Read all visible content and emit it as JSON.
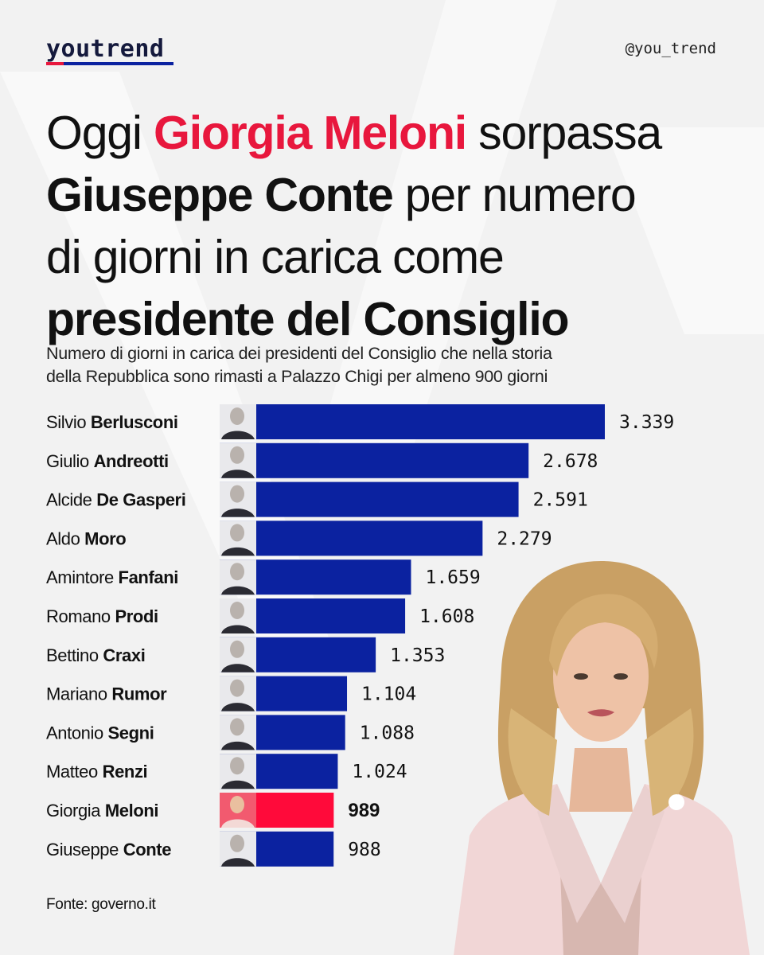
{
  "brand": {
    "logo": "youtrend",
    "handle": "@you_trend",
    "underline_colors": [
      "#e8173d",
      "#0b22a0"
    ]
  },
  "headline": {
    "line1_pre": "Oggi ",
    "line1_red": "Giorgia Meloni",
    "line1_post": " sorpassa",
    "line2_bold": "Giuseppe Conte",
    "line2_post": " per numero",
    "line3": "di giorni in carica come",
    "line4_bold": "presidente del Consiglio"
  },
  "subtitle": {
    "line1": "Numero di giorni in carica dei presidenti del Consiglio che nella storia",
    "line2": "della Repubblica sono rimasti a Palazzo Chigi per almeno 900 giorni"
  },
  "source": "Fonte: governo.it",
  "chart_data": {
    "type": "bar",
    "orientation": "horizontal",
    "categories": [
      {
        "first": "Silvio",
        "last": "Berlusconi"
      },
      {
        "first": "Giulio",
        "last": "Andreotti"
      },
      {
        "first": "Alcide",
        "last": "De Gasperi"
      },
      {
        "first": "Aldo",
        "last": "Moro"
      },
      {
        "first": "Amintore",
        "last": "Fanfani"
      },
      {
        "first": "Romano",
        "last": "Prodi"
      },
      {
        "first": "Bettino",
        "last": "Craxi"
      },
      {
        "first": "Mariano",
        "last": "Rumor"
      },
      {
        "first": "Antonio",
        "last": "Segni"
      },
      {
        "first": "Matteo",
        "last": "Renzi"
      },
      {
        "first": "Giorgia",
        "last": "Meloni"
      },
      {
        "first": "Giuseppe",
        "last": "Conte"
      }
    ],
    "values": [
      3339,
      2678,
      2591,
      2279,
      1659,
      1608,
      1353,
      1104,
      1088,
      1024,
      989,
      988
    ],
    "value_labels": [
      "3.339",
      "2.678",
      "2.591",
      "2.279",
      "1.659",
      "1.608",
      "1.353",
      "1.104",
      "1.088",
      "1.024",
      "989",
      "988"
    ],
    "highlight_index": 10,
    "colors": {
      "default": "#0b22a0",
      "highlight": "#ff0a3a"
    },
    "xlim": [
      0,
      3339
    ],
    "grid": false,
    "legend": "none"
  }
}
